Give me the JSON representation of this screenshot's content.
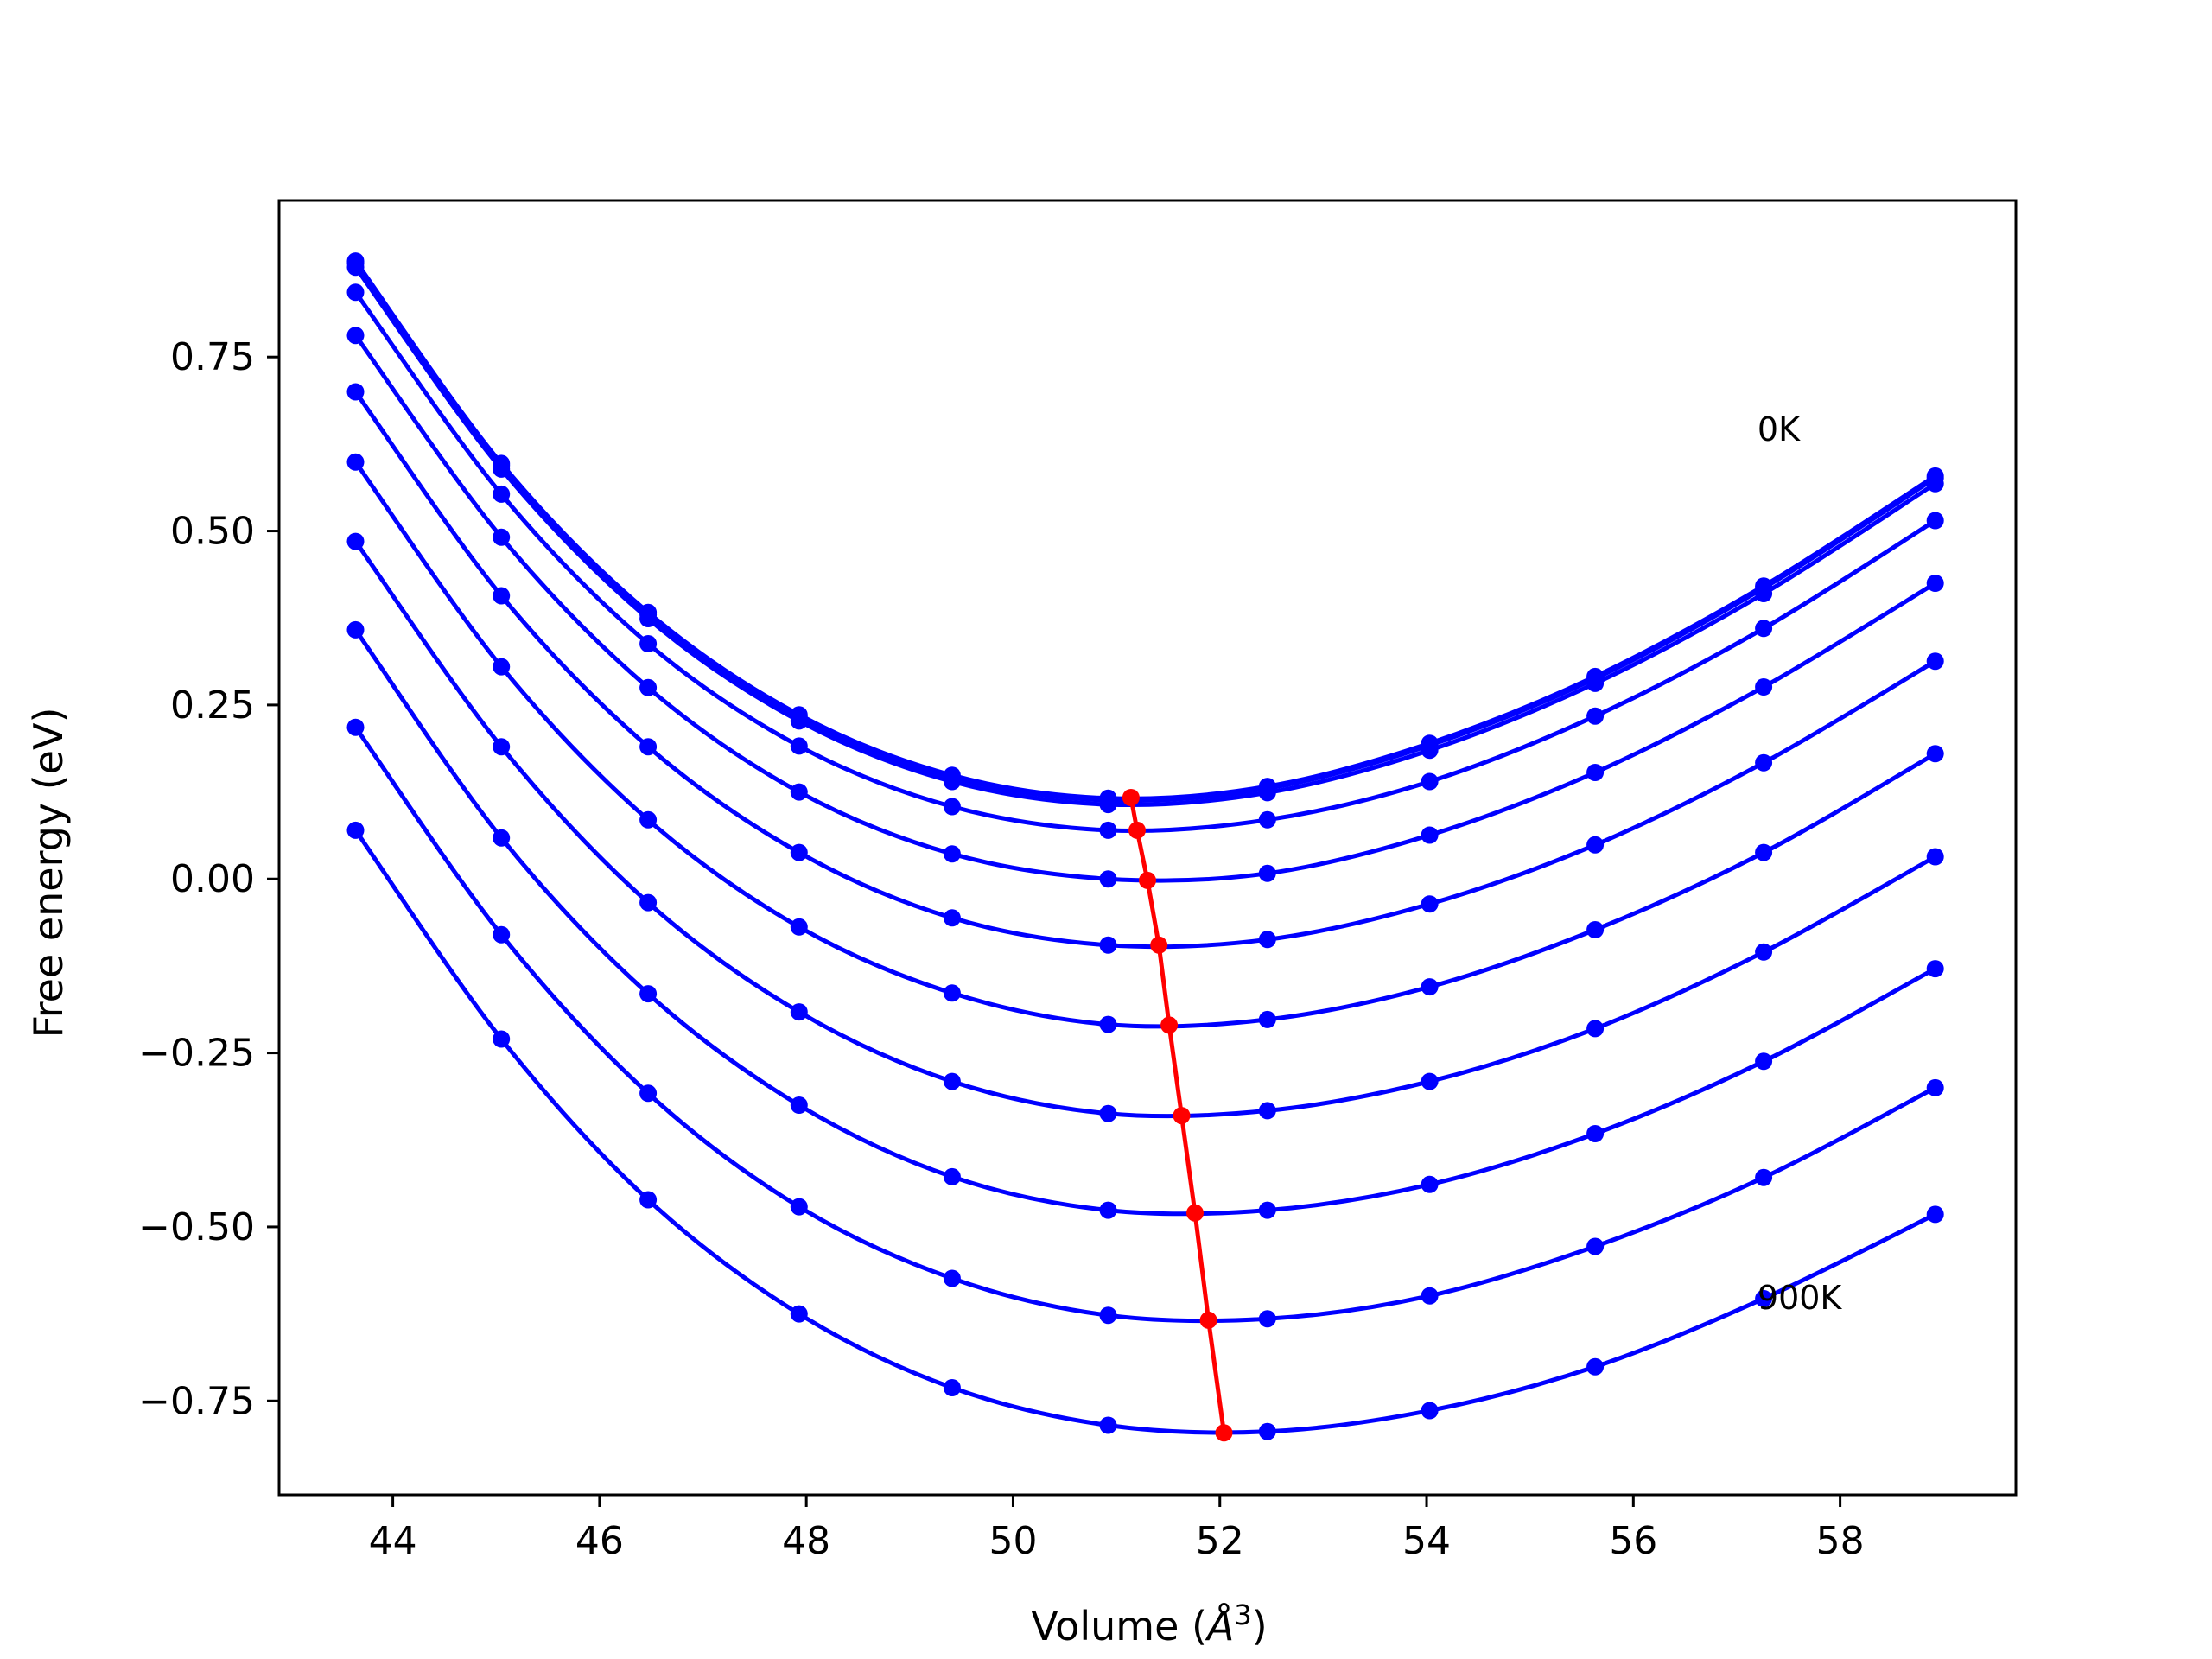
{
  "chart_data": {
    "type": "line",
    "title": "",
    "xlabel": "Volume (",
    "xlabel_symbol": "Å",
    "xlabel_exp": "3",
    "xlabel_close": ")",
    "ylabel": "Free energy (eV)",
    "xlim": [
      42.9,
      59.7
    ],
    "ylim": [
      -0.885,
      0.975
    ],
    "xticks": [
      {
        "value": 44,
        "label": "44"
      },
      {
        "value": 46,
        "label": "46"
      },
      {
        "value": 48,
        "label": "48"
      },
      {
        "value": 50,
        "label": "50"
      },
      {
        "value": 52,
        "label": "52"
      },
      {
        "value": 54,
        "label": "54"
      },
      {
        "value": 56,
        "label": "56"
      },
      {
        "value": 58,
        "label": "58"
      }
    ],
    "yticks": [
      {
        "value": 0.75,
        "label": "0.75"
      },
      {
        "value": 0.5,
        "label": "0.50"
      },
      {
        "value": 0.25,
        "label": "0.25"
      },
      {
        "value": 0.0,
        "label": "0.00"
      },
      {
        "value": -0.25,
        "label": "−0.25"
      },
      {
        "value": -0.5,
        "label": "−0.50"
      },
      {
        "value": -0.75,
        "label": "−0.75"
      }
    ],
    "grid": false,
    "legend": "none",
    "series_color": "#0000ff",
    "minima_color": "#ff0000",
    "x": [
      43.64,
      45.05,
      46.47,
      47.93,
      49.41,
      50.92,
      52.46,
      54.03,
      55.63,
      57.26,
      58.92
    ],
    "series": [
      {
        "values": [
          0.888,
          0.597,
          0.383,
          0.236,
          0.149,
          0.116,
          0.133,
          0.195,
          0.291,
          0.421,
          0.579
        ]
      },
      {
        "values": [
          0.885,
          0.594,
          0.38,
          0.233,
          0.146,
          0.113,
          0.13,
          0.192,
          0.288,
          0.418,
          0.576
        ]
      },
      {
        "values": [
          0.879,
          0.589,
          0.374,
          0.227,
          0.14,
          0.107,
          0.124,
          0.185,
          0.281,
          0.41,
          0.568
        ]
      },
      {
        "values": [
          0.843,
          0.553,
          0.338,
          0.191,
          0.104,
          0.07,
          0.085,
          0.14,
          0.234,
          0.36,
          0.515
        ]
      },
      {
        "values": [
          0.781,
          0.491,
          0.275,
          0.125,
          0.036,
          0.0,
          0.008,
          0.063,
          0.153,
          0.276,
          0.425
        ]
      },
      {
        "values": [
          0.7,
          0.407,
          0.19,
          0.038,
          -0.056,
          -0.095,
          -0.087,
          -0.036,
          0.049,
          0.167,
          0.313
        ]
      },
      {
        "values": [
          0.599,
          0.305,
          0.085,
          -0.069,
          -0.164,
          -0.209,
          -0.202,
          -0.155,
          -0.073,
          0.038,
          0.18
        ]
      },
      {
        "values": [
          0.485,
          0.19,
          -0.034,
          -0.191,
          -0.291,
          -0.337,
          -0.333,
          -0.291,
          -0.215,
          -0.105,
          0.032
        ]
      },
      {
        "values": [
          0.358,
          0.059,
          -0.165,
          -0.325,
          -0.428,
          -0.476,
          -0.476,
          -0.439,
          -0.366,
          -0.262,
          -0.129
        ]
      },
      {
        "values": [
          0.218,
          -0.08,
          -0.308,
          -0.471,
          -0.574,
          -0.627,
          -0.632,
          -0.599,
          -0.528,
          -0.429,
          -0.3
        ]
      },
      {
        "values": [
          0.07,
          -0.23,
          -0.461,
          -0.625,
          -0.731,
          -0.785,
          -0.794,
          -0.764,
          -0.701,
          -0.603,
          -0.482
        ]
      }
    ],
    "minima": {
      "x": [
        51.14,
        51.2,
        51.3,
        51.41,
        51.51,
        51.63,
        51.76,
        51.89,
        52.04
      ],
      "y": [
        0.117,
        0.07,
        -0.002,
        -0.095,
        -0.21,
        -0.34,
        -0.48,
        -0.634,
        -0.796
      ]
    },
    "annotations": [
      {
        "text": "0K",
        "x": 57.2,
        "y": 0.63
      },
      {
        "text": "900K",
        "x": 57.2,
        "y": -0.618
      }
    ]
  }
}
